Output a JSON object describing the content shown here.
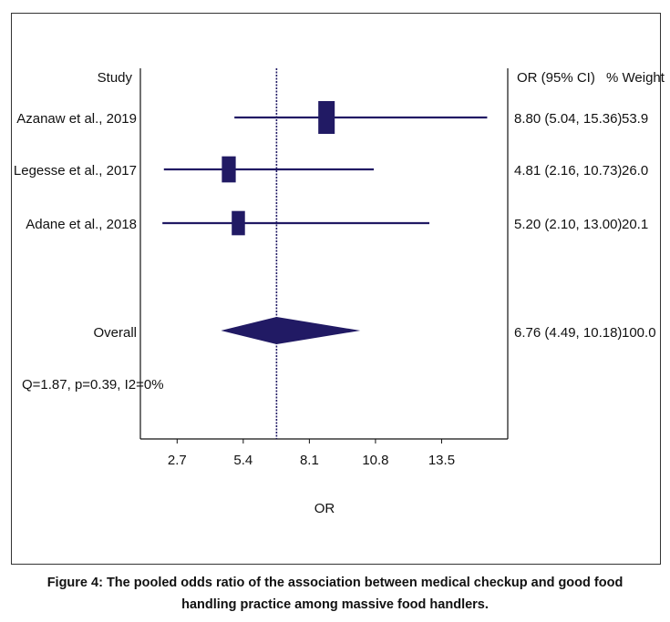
{
  "chart_data": {
    "type": "forest",
    "header": {
      "study": "Study",
      "ci": "OR (95% CI)",
      "weight": "% Weight"
    },
    "studies": [
      {
        "label": "Azanaw et al., 2019",
        "or": 8.8,
        "lo": 5.04,
        "hi": 15.36,
        "or_text": "8.80 (5.04, 15.36)",
        "weight": 53.9,
        "weight_text": "53.9"
      },
      {
        "label": "Legesse et al., 2017",
        "or": 4.81,
        "lo": 2.16,
        "hi": 10.73,
        "or_text": "4.81 (2.16, 10.73)",
        "weight": 26.0,
        "weight_text": "26.0"
      },
      {
        "label": "Adane et al., 2018",
        "or": 5.2,
        "lo": 2.1,
        "hi": 13.0,
        "or_text": "5.20 (2.10, 13.00)",
        "weight": 20.1,
        "weight_text": "20.1"
      }
    ],
    "overall": {
      "label": "Overall",
      "or": 6.76,
      "lo": 4.49,
      "hi": 10.18,
      "or_text": "6.76 (4.49, 10.18)",
      "weight_text": "100.0"
    },
    "heterogeneity": "Q=1.87, p=0.39, I2=0%",
    "x_ticks": [
      2.7,
      5.4,
      8.1,
      10.8,
      13.5
    ],
    "x_tick_labels": [
      "2.7",
      "5.4",
      "8.1",
      "10.8",
      "13.5"
    ],
    "xlabel": "OR",
    "xlim": [
      1.2,
      16.2
    ],
    "reference_line": 6.76,
    "color": "#211A64"
  },
  "caption": {
    "line1": "Figure 4: The pooled odds ratio of the association between medical checkup and good food",
    "line2": "handling practice among massive food handlers."
  }
}
